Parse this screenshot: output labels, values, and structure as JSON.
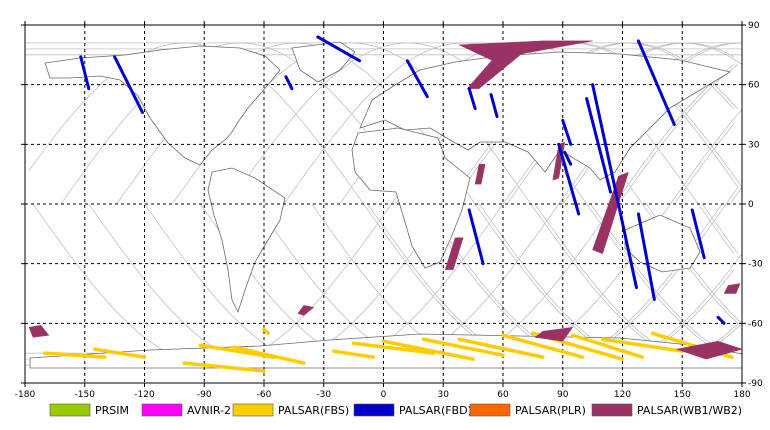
{
  "map": {
    "x_range": [
      -180,
      180
    ],
    "y_range": [
      -90,
      90
    ],
    "x_ticks": [
      "-180",
      "-150",
      "-120",
      "-90",
      "-60",
      "-30",
      "0",
      "30",
      "60",
      "90",
      "120",
      "150",
      "180"
    ],
    "y_ticks": [
      "90",
      "60",
      "30",
      "0",
      "-30",
      "-60",
      "-90"
    ],
    "grid": "dashed, every 30 degrees",
    "orbit_color": "#c0c0c0",
    "coast_color": "#606060"
  },
  "legend": [
    {
      "name": "PRSIM",
      "color": "#99cc00"
    },
    {
      "name": "AVNIR-2",
      "color": "#ff00ff"
    },
    {
      "name": "PALSAR(FBS)",
      "color": "#ffcc00"
    },
    {
      "name": "PALSAR(FBD)",
      "color": "#0000cc"
    },
    {
      "name": "PALSAR(PLR)",
      "color": "#ff6600"
    },
    {
      "name": "PALSAR(WB1/WB2)",
      "color": "#993366"
    }
  ],
  "swaths": {
    "fbd": [
      [
        [
          -152,
          74
        ],
        [
          -148,
          58
        ]
      ],
      [
        [
          -135,
          74
        ],
        [
          -121,
          46
        ]
      ],
      [
        [
          -33,
          84
        ],
        [
          -12,
          72
        ]
      ],
      [
        [
          -49,
          64
        ],
        [
          -46,
          58
        ]
      ],
      [
        [
          12,
          72
        ],
        [
          22,
          54
        ]
      ],
      [
        [
          43,
          58
        ],
        [
          46,
          48
        ]
      ],
      [
        [
          54,
          55
        ],
        [
          57,
          44
        ]
      ],
      [
        [
          128,
          82
        ],
        [
          146,
          40
        ]
      ],
      [
        [
          102,
          53
        ],
        [
          114,
          6
        ]
      ],
      [
        [
          105,
          60
        ],
        [
          127,
          -42
        ]
      ],
      [
        [
          88,
          30
        ],
        [
          98,
          -5
        ]
      ],
      [
        [
          128,
          -5
        ],
        [
          136,
          -48
        ]
      ],
      [
        [
          43,
          -3
        ],
        [
          50,
          -30
        ]
      ],
      [
        [
          155,
          -3
        ],
        [
          161,
          -27
        ]
      ],
      [
        [
          168,
          -57
        ],
        [
          171,
          -60
        ]
      ],
      [
        [
          90,
          42
        ],
        [
          94,
          30
        ]
      ],
      [
        [
          91,
          26
        ],
        [
          94,
          20
        ]
      ]
    ],
    "wb": [
      [
        [
          [
            38,
            80
          ],
          [
            80,
            82
          ],
          [
            105,
            82
          ],
          [
            72,
            76
          ],
          [
            55,
            72
          ]
        ],
        "poly"
      ],
      [
        [
          [
            56,
            74
          ],
          [
            70,
            76
          ],
          [
            48,
            58
          ],
          [
            42,
            58
          ]
        ],
        "poly"
      ],
      [
        [
          [
            118,
            14
          ],
          [
            123,
            16
          ],
          [
            110,
            -25
          ],
          [
            105,
            -23
          ]
        ],
        "poly"
      ],
      [
        [
          [
            88,
            30
          ],
          [
            91,
            31
          ],
          [
            88,
            13
          ],
          [
            85,
            12
          ]
        ],
        "poly"
      ],
      [
        [
          [
            48,
            20
          ],
          [
            51,
            20
          ],
          [
            49,
            10
          ],
          [
            46,
            10
          ]
        ],
        "poly"
      ],
      [
        [
          [
            36,
            -17
          ],
          [
            40,
            -17
          ],
          [
            35,
            -33
          ],
          [
            31,
            -33
          ]
        ],
        "poly"
      ],
      [
        [
          [
            -178,
            -62
          ],
          [
            -172,
            -61
          ],
          [
            -168,
            -66
          ],
          [
            -176,
            -67
          ]
        ],
        "poly"
      ],
      [
        [
          [
            -40,
            -51
          ],
          [
            -35,
            -52
          ],
          [
            -40,
            -56
          ],
          [
            -43,
            -55
          ]
        ],
        "poly"
      ],
      [
        [
          [
            147,
            -73
          ],
          [
            168,
            -69
          ],
          [
            180,
            -73
          ],
          [
            162,
            -78
          ]
        ],
        "poly"
      ],
      [
        [
          [
            173,
            -41
          ],
          [
            179,
            -40
          ],
          [
            177,
            -45
          ],
          [
            171,
            -45
          ]
        ],
        "poly"
      ],
      [
        [
          [
            80,
            -64
          ],
          [
            95,
            -62
          ],
          [
            90,
            -69
          ],
          [
            76,
            -67
          ]
        ],
        "poly"
      ]
    ],
    "fbs": [
      [
        [
          -170,
          -75
        ],
        [
          -140,
          -77
        ]
      ],
      [
        [
          -145,
          -73
        ],
        [
          -120,
          -77
        ]
      ],
      [
        [
          -92,
          -71
        ],
        [
          -55,
          -77
        ]
      ],
      [
        [
          -75,
          -72
        ],
        [
          -40,
          -80
        ]
      ],
      [
        [
          -60,
          -63
        ],
        [
          -58,
          -65
        ]
      ],
      [
        [
          -25,
          -74
        ],
        [
          -5,
          -77
        ]
      ],
      [
        [
          -15,
          -70
        ],
        [
          25,
          -75
        ]
      ],
      [
        [
          0,
          -69
        ],
        [
          45,
          -78
        ]
      ],
      [
        [
          20,
          -68
        ],
        [
          60,
          -76
        ]
      ],
      [
        [
          38,
          -68
        ],
        [
          80,
          -77
        ]
      ],
      [
        [
          60,
          -66
        ],
        [
          100,
          -77
        ]
      ],
      [
        [
          75,
          -65
        ],
        [
          120,
          -78
        ]
      ],
      [
        [
          95,
          -66
        ],
        [
          130,
          -77
        ]
      ],
      [
        [
          110,
          -68
        ],
        [
          150,
          -74
        ]
      ],
      [
        [
          135,
          -65
        ],
        [
          175,
          -77
        ]
      ],
      [
        [
          -100,
          -80
        ],
        [
          -60,
          -84
        ]
      ]
    ]
  }
}
